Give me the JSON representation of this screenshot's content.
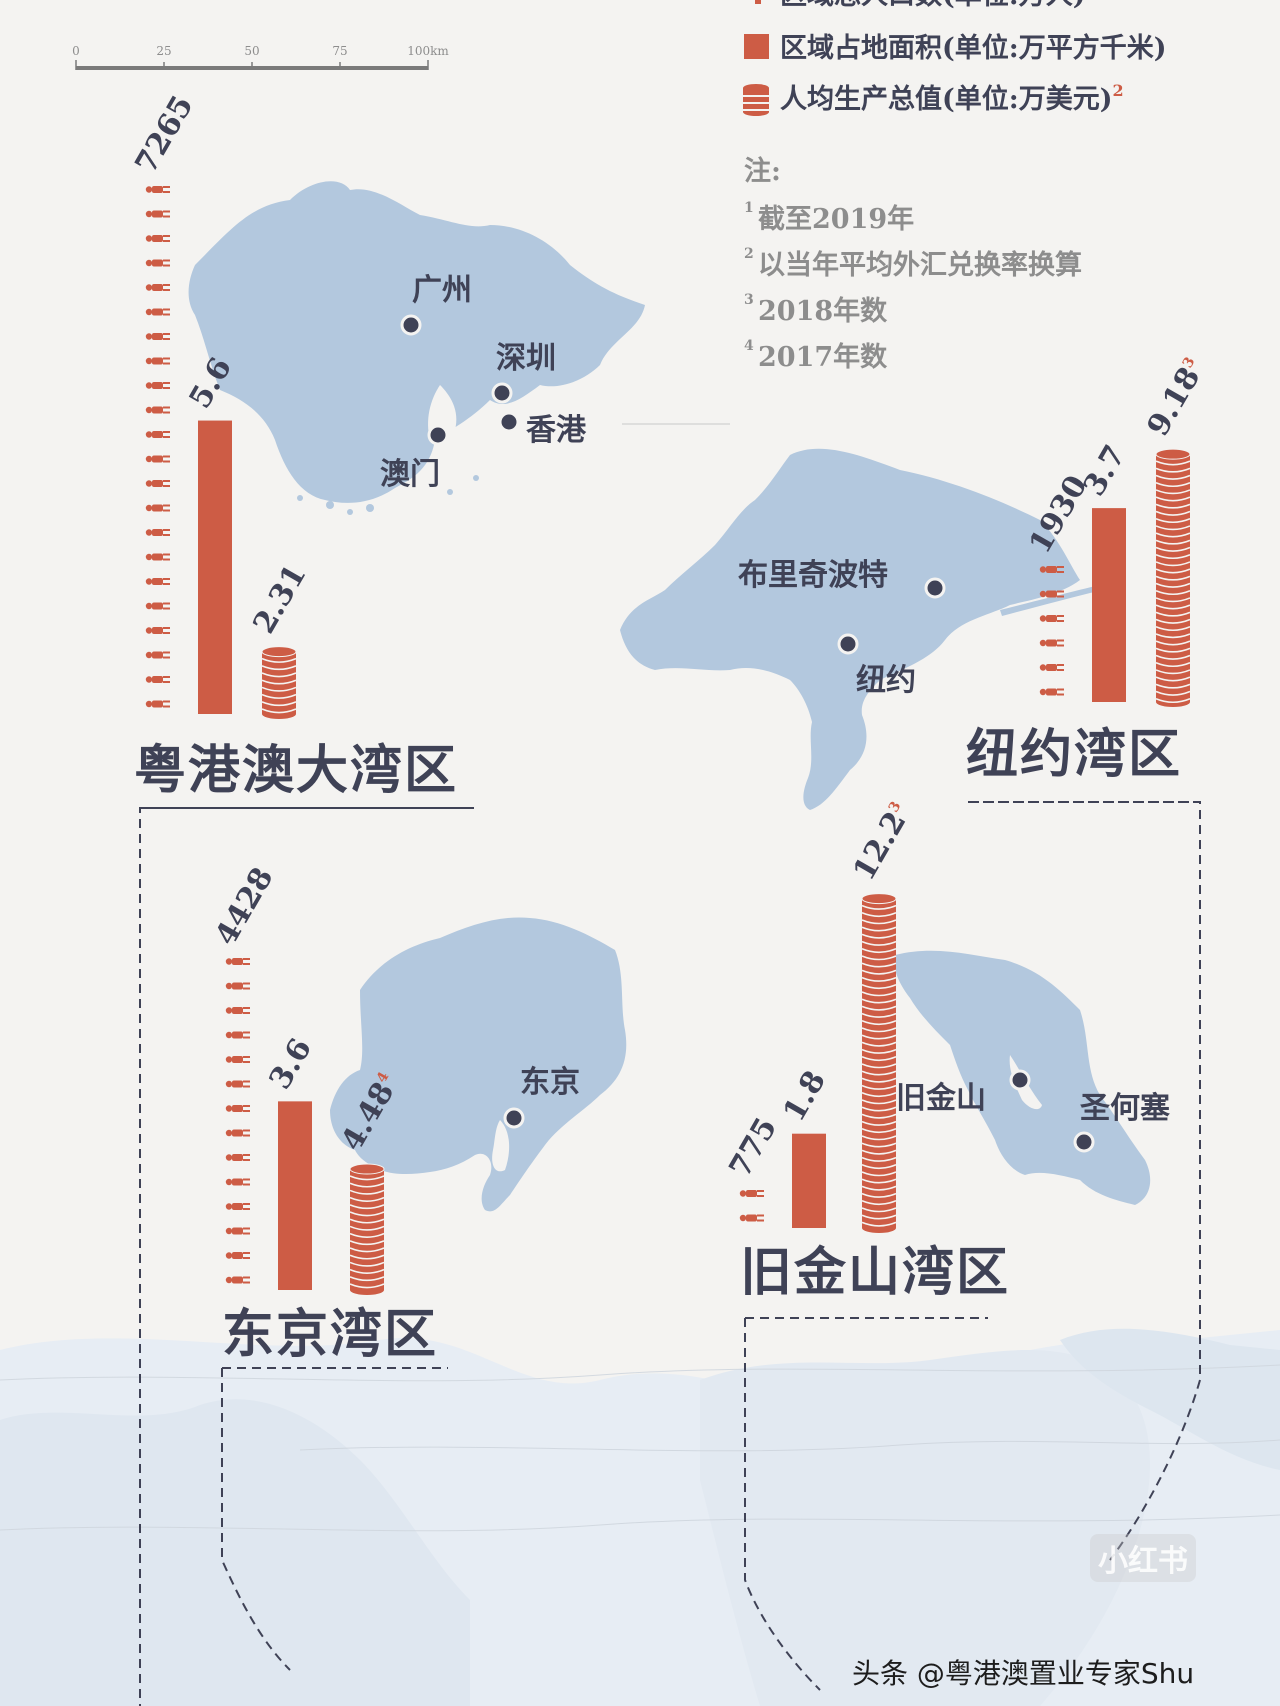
{
  "scale_bar": {
    "ticks": [
      "0",
      "25",
      "50",
      "75",
      "100km"
    ]
  },
  "legend": [
    {
      "label": "区域总人口数(单位:万人)",
      "sup": "",
      "icon": "person-icon"
    },
    {
      "label": "区域占地面积(单位:万平方千米)",
      "sup": "",
      "icon": "bar-icon"
    },
    {
      "label": "人均生产总值(单位:万美元)",
      "sup": "2",
      "icon": "coin-stack-icon"
    }
  ],
  "notes": {
    "title": "注:",
    "items": [
      {
        "sup": "1",
        "text": "截至2019年"
      },
      {
        "sup": "2",
        "text": "以当年平均外汇兑换率换算"
      },
      {
        "sup": "3",
        "text": "2018年数"
      },
      {
        "sup": "4",
        "text": "2017年数"
      }
    ]
  },
  "colors": {
    "accent": "#cd5c45",
    "land": "#b3c8de",
    "ink": "#3f4256",
    "muted": "#8d8d8d",
    "background": "#f4f3f1"
  },
  "chart_data": [
    {
      "type": "bar",
      "title": "粤港澳大湾区",
      "categories": [
        "区域总人口数",
        "区域占地面积",
        "人均生产总值"
      ],
      "values": [
        7265,
        5.6,
        2.31
      ],
      "value_labels": [
        "7265",
        "5.6",
        "2.31"
      ],
      "value_sups": [
        "",
        "",
        ""
      ],
      "cities": [
        "广州",
        "深圳",
        "香港",
        "澳门"
      ]
    },
    {
      "type": "bar",
      "title": "纽约湾区",
      "categories": [
        "区域总人口数",
        "区域占地面积",
        "人均生产总值"
      ],
      "values": [
        1930,
        3.7,
        9.18
      ],
      "value_labels": [
        "1930",
        "3.7",
        "9.18"
      ],
      "value_sups": [
        "",
        "",
        "3"
      ],
      "cities": [
        "布里奇波特",
        "纽约"
      ]
    },
    {
      "type": "bar",
      "title": "东京湾区",
      "categories": [
        "区域总人口数",
        "区域占地面积",
        "人均生产总值"
      ],
      "values": [
        4428,
        3.6,
        4.48
      ],
      "value_labels": [
        "4428",
        "3.6",
        "4.48"
      ],
      "value_sups": [
        "",
        "",
        "4"
      ],
      "cities": [
        "东京"
      ]
    },
    {
      "type": "bar",
      "title": "旧金山湾区",
      "categories": [
        "区域总人口数",
        "区域占地面积",
        "人均生产总值"
      ],
      "values": [
        775,
        1.8,
        12.2
      ],
      "value_labels": [
        "775",
        "1.8",
        "12.2"
      ],
      "value_sups": [
        "",
        "",
        "3"
      ],
      "cities": [
        "旧金山",
        "圣何塞"
      ]
    }
  ],
  "watermark": {
    "text": "头条 @粤港澳置业专家Shu",
    "logo": "小红书"
  }
}
